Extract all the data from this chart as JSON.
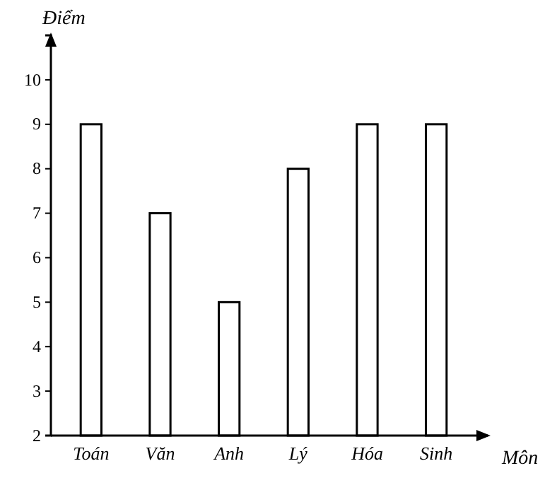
{
  "chart_data": {
    "type": "bar",
    "xlabel": "Môn",
    "ylabel": "Điểm",
    "categories": [
      "Toán",
      "Văn",
      "Anh",
      "Lý",
      "Hóa",
      "Sinh"
    ],
    "values": [
      9,
      7,
      5,
      8,
      9,
      9
    ],
    "color": "#ffffff",
    "ylim": [
      2,
      11
    ],
    "yticks": [
      2,
      3,
      4,
      5,
      6,
      7,
      8,
      9,
      10
    ],
    "grid": false
  }
}
